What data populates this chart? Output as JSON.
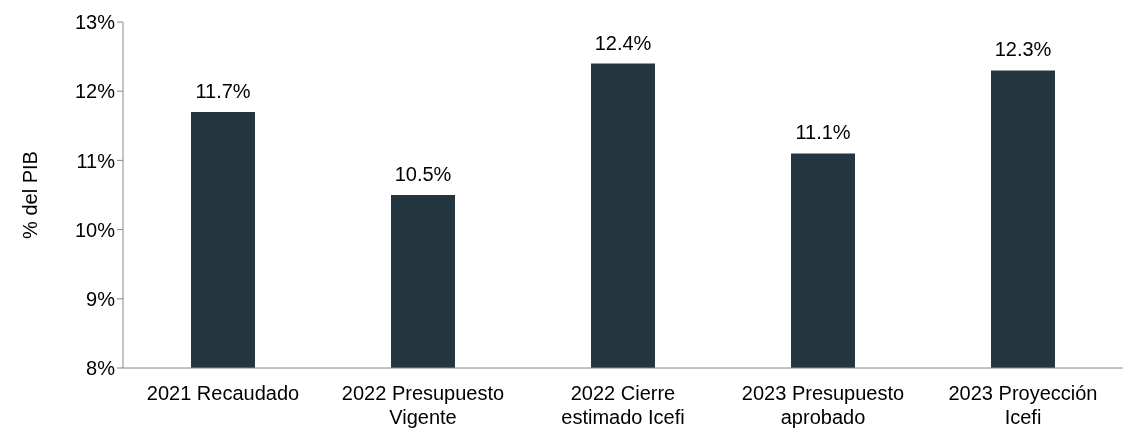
{
  "chart_data": {
    "type": "bar",
    "ylabel": "% del PIB",
    "categories": [
      "2021 Recaudado",
      "2022 Presupuesto Vigente",
      "2022 Cierre estimado Icefi",
      "2023 Presupuesto aprobado",
      "2023 Proyección Icefi"
    ],
    "values": [
      11.7,
      10.5,
      12.4,
      11.1,
      12.3
    ],
    "value_labels": [
      "11.7%",
      "10.5%",
      "12.4%",
      "11.1%",
      "12.3%"
    ],
    "color": "#233640",
    "ylim": [
      8,
      13
    ],
    "yticks": [
      {
        "value": 8,
        "label": "8%"
      },
      {
        "value": 9,
        "label": "9%"
      },
      {
        "value": 10,
        "label": "10%"
      },
      {
        "value": 11,
        "label": "11%"
      },
      {
        "value": 12,
        "label": "12%"
      },
      {
        "value": 13,
        "label": "13%"
      }
    ],
    "grid": false
  }
}
